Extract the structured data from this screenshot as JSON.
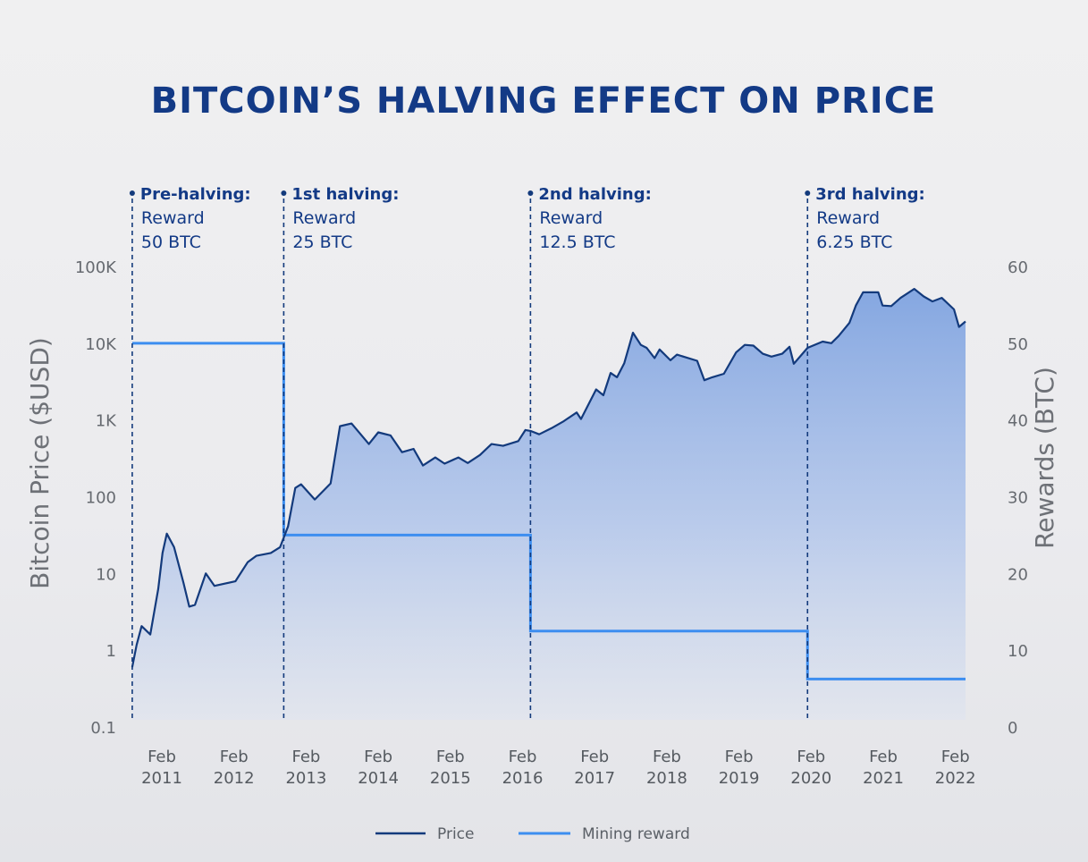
{
  "title": "BITCOIN’S HALVING EFFECT ON PRICE",
  "annotations": [
    {
      "label": "Pre-halving:",
      "line1": "Reward",
      "line2": "50 BTC",
      "x": 2010.67
    },
    {
      "label": "1st halving:",
      "line1": "Reward",
      "line2": "25 BTC",
      "x": 2012.77
    },
    {
      "label": "2nd halving:",
      "line1": "Reward",
      "line2": "12.5 BTC",
      "x": 2016.19
    },
    {
      "label": "3rd halving:",
      "line1": "Reward",
      "line2": "6.25 BTC",
      "x": 2020.03
    }
  ],
  "legend": {
    "price": "Price",
    "reward": "Mining reward"
  },
  "colors": {
    "title": "#133a86",
    "price_line": "#133a7c",
    "price_fill": "#7fa3e0",
    "reward_line": "#3d8ef0"
  },
  "chart_data": {
    "type": "line",
    "title": "BITCOIN’S HALVING EFFECT ON PRICE",
    "xlabel": "",
    "ylabel": "Bitcoin Price ($USD)",
    "y2label": "Rewards (BTC)",
    "yscale": "log",
    "ylim": [
      0.1,
      100000
    ],
    "y2lim": [
      0,
      60
    ],
    "xlim": [
      2010.67,
      2022.22
    ],
    "grid": false,
    "legend_position": "bottom",
    "y_ticks": [
      "0.1",
      "1",
      "10",
      "100",
      "1K",
      "10K",
      "100K"
    ],
    "y_tick_values": [
      0.1,
      1,
      10,
      100,
      1000,
      10000,
      100000
    ],
    "y2_ticks": [
      "0",
      "10",
      "20",
      "30",
      "40",
      "50",
      "60"
    ],
    "x_ticks": [
      {
        "line1": "Feb",
        "line2": "2011",
        "x": 2011.08
      },
      {
        "line1": "Feb",
        "line2": "2012",
        "x": 2012.08
      },
      {
        "line1": "Feb",
        "line2": "2013",
        "x": 2013.08
      },
      {
        "line1": "Feb",
        "line2": "2014",
        "x": 2014.08
      },
      {
        "line1": "Feb",
        "line2": "2015",
        "x": 2015.08
      },
      {
        "line1": "Feb",
        "line2": "2016",
        "x": 2016.08
      },
      {
        "line1": "Feb",
        "line2": "2017",
        "x": 2017.08
      },
      {
        "line1": "Feb",
        "line2": "2018",
        "x": 2018.08
      },
      {
        "line1": "Feb",
        "line2": "2019",
        "x": 2019.08
      },
      {
        "line1": "Feb",
        "line2": "2020",
        "x": 2020.08
      },
      {
        "line1": "Feb",
        "line2": "2021",
        "x": 2021.08
      },
      {
        "line1": "Feb",
        "line2": "2022",
        "x": 2022.08
      }
    ],
    "series": [
      {
        "name": "Price",
        "axis": "left",
        "type": "area-line",
        "x": [
          2010.67,
          2010.73,
          2010.8,
          2010.92,
          2011.03,
          2011.09,
          2011.15,
          2011.25,
          2011.38,
          2011.46,
          2011.54,
          2011.69,
          2011.81,
          2012.1,
          2012.27,
          2012.39,
          2012.59,
          2012.72,
          2012.83,
          2012.93,
          2013.01,
          2013.2,
          2013.42,
          2013.55,
          2013.71,
          2013.95,
          2014.08,
          2014.25,
          2014.41,
          2014.57,
          2014.7,
          2014.87,
          2015.0,
          2015.19,
          2015.32,
          2015.49,
          2015.65,
          2015.81,
          2016.02,
          2016.12,
          2016.19,
          2016.31,
          2016.48,
          2016.64,
          2016.83,
          2016.89,
          2017.1,
          2017.2,
          2017.3,
          2017.39,
          2017.49,
          2017.61,
          2017.72,
          2017.8,
          2017.91,
          2017.98,
          2018.13,
          2018.22,
          2018.5,
          2018.6,
          2018.71,
          2018.87,
          2019.04,
          2019.16,
          2019.28,
          2019.41,
          2019.53,
          2019.68,
          2019.78,
          2019.84,
          2020.03,
          2020.24,
          2020.36,
          2020.46,
          2020.61,
          2020.7,
          2020.8,
          2021.01,
          2021.07,
          2021.19,
          2021.32,
          2021.51,
          2021.64,
          2021.76,
          2021.89,
          2022.06,
          2022.13,
          2022.22
        ],
        "values": [
          0.6,
          1.17,
          2.06,
          1.6,
          6.3,
          18.5,
          33,
          22,
          7.6,
          3.7,
          3.9,
          10,
          6.9,
          7.9,
          14,
          17,
          18.5,
          22,
          41,
          130,
          145,
          92,
          149,
          830,
          900,
          485,
          690,
          630,
          380,
          420,
          255,
          325,
          270,
          325,
          275,
          350,
          485,
          460,
          530,
          740,
          720,
          650,
          780,
          950,
          1250,
          1030,
          2500,
          2100,
          4100,
          3600,
          5500,
          13700,
          9500,
          8700,
          6400,
          8300,
          6000,
          7100,
          5900,
          3300,
          3600,
          4000,
          7600,
          9500,
          9300,
          7300,
          6700,
          7300,
          9000,
          5400,
          8700,
          10500,
          10000,
          12400,
          18400,
          31000,
          46000,
          46000,
          31000,
          30500,
          39000,
          51000,
          40700,
          35000,
          39000,
          27600,
          16300,
          19200
        ]
      },
      {
        "name": "Mining reward",
        "axis": "right",
        "type": "step",
        "x": [
          2010.67,
          2012.77,
          2016.19,
          2020.03,
          2022.22
        ],
        "values": [
          50,
          25,
          12.5,
          6.25,
          6.25
        ]
      }
    ]
  }
}
